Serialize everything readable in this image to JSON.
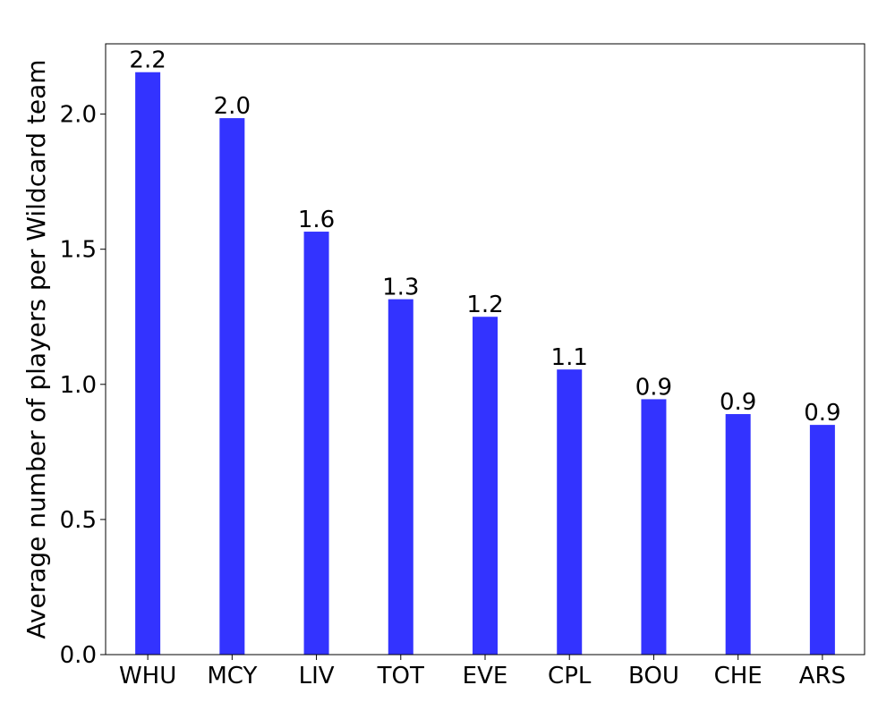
{
  "chart_data": {
    "type": "bar",
    "categories": [
      "WHU",
      "MCY",
      "LIV",
      "TOT",
      "EVE",
      "CPL",
      "BOU",
      "CHE",
      "ARS"
    ],
    "values": [
      2.155,
      1.985,
      1.565,
      1.315,
      1.25,
      1.055,
      0.945,
      0.89,
      0.85
    ],
    "data_labels": [
      "2.2",
      "2.0",
      "1.6",
      "1.3",
      "1.2",
      "1.1",
      "0.9",
      "0.9",
      "0.9"
    ],
    "title": "",
    "xlabel": "",
    "ylabel": "Average number of players per Wildcard team",
    "ylim": [
      0,
      2.26
    ],
    "yticks": [
      0.0,
      0.5,
      1.0,
      1.5,
      2.0
    ],
    "ytick_labels": [
      "0.0",
      "0.5",
      "1.0",
      "1.5",
      "2.0"
    ],
    "grid": false,
    "legend": "none",
    "bar_color": "#3333ff"
  }
}
